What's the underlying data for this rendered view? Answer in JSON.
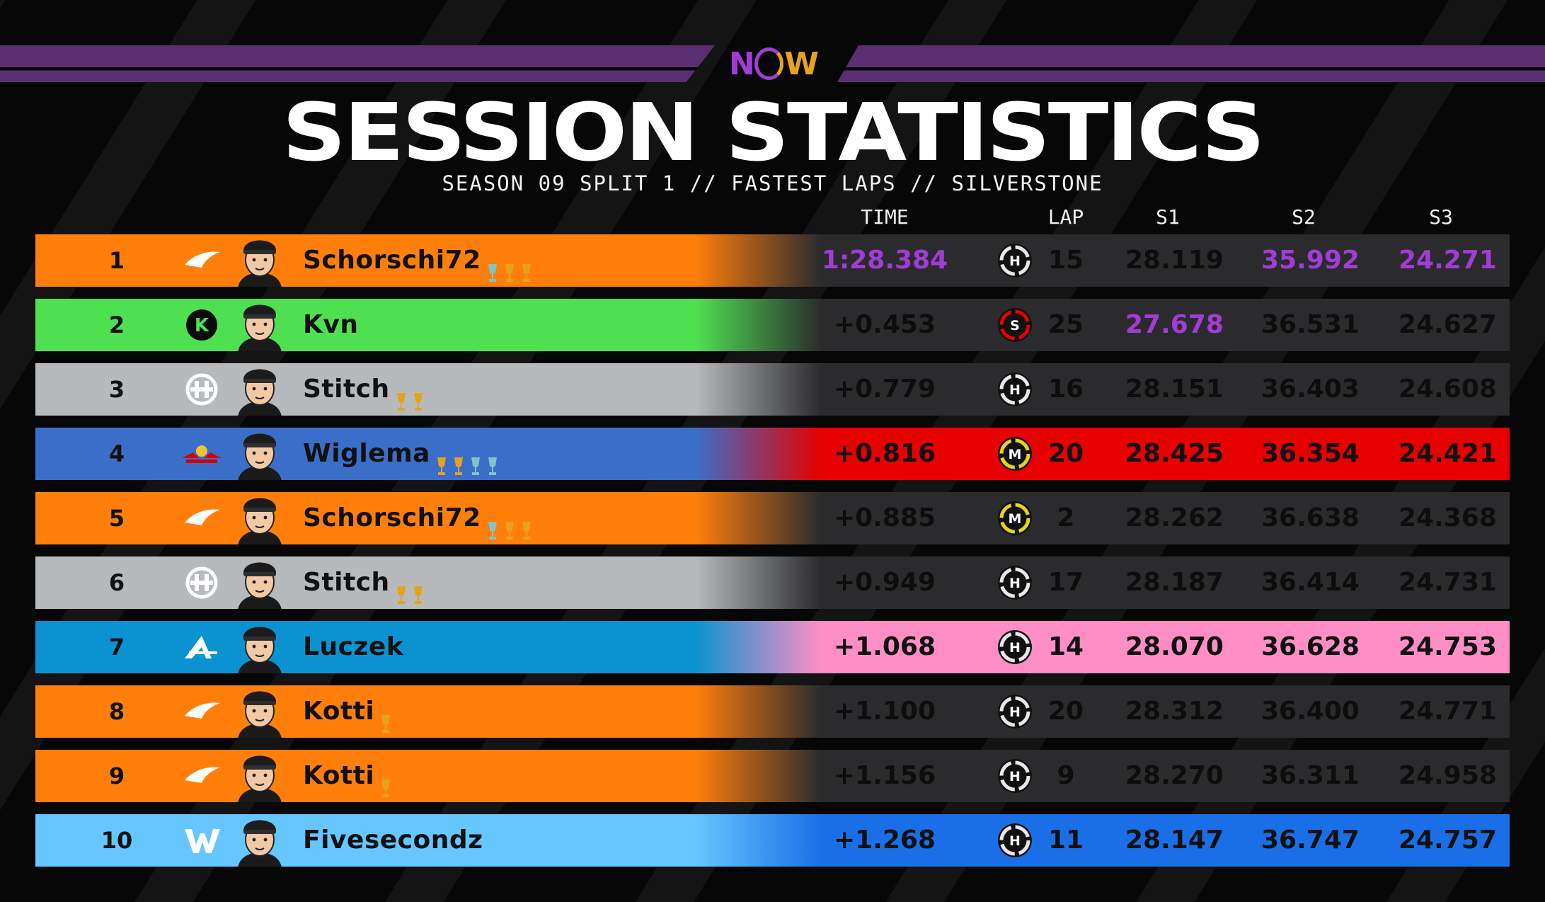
{
  "header": {
    "logo_text": "NOW",
    "title": "SESSION STATISTICS",
    "subtitle": "SEASON 09 SPLIT 1 // FASTEST LAPS // SILVERSTONE"
  },
  "columns": {
    "time": "TIME",
    "lap": "LAP",
    "s1": "S1",
    "s2": "S2",
    "s3": "S3"
  },
  "colors": {
    "mclaren": "#ff7f0a",
    "sauber": "#4fe052",
    "haas": "#b7babd",
    "redbull": "#3b6ec9",
    "alpine": "#0b93d1",
    "williams": "#66c6ff",
    "dark_row": "#2b2b2d",
    "red_row": "#e60000",
    "pink_row": "#ff8ec7",
    "blue_row": "#1b6fe6",
    "purple_time": "#a23cd6",
    "tyre_hard": "#e8e8e8",
    "tyre_medium": "#e8d21a",
    "tyre_soft": "#e60000"
  },
  "rows": [
    {
      "pos": "1",
      "team": "mclaren",
      "team_icon": "mclaren-swoosh-icon",
      "driver": "Schorschi72",
      "trophies": [
        "#7fc6c9",
        "#e6a21e",
        "#e6a21e"
      ],
      "time": "1:28.384",
      "tyre": "H",
      "lap": "15",
      "s1": "28.119",
      "s2": "35.992",
      "s3": "24.271",
      "right_bg": "dark_row",
      "purple": [
        "time",
        "s2",
        "s3"
      ]
    },
    {
      "pos": "2",
      "team": "sauber",
      "team_icon": "sauber-k-icon",
      "driver": "Kvn",
      "trophies": [],
      "time": "+0.453",
      "tyre": "S",
      "lap": "25",
      "s1": "27.678",
      "s2": "36.531",
      "s3": "24.627",
      "right_bg": "dark_row",
      "purple": [
        "s1"
      ]
    },
    {
      "pos": "3",
      "team": "haas",
      "team_icon": "haas-logo-icon",
      "driver": "Stitch",
      "trophies": [
        "#e6a21e",
        "#e6a21e"
      ],
      "time": "+0.779",
      "tyre": "H",
      "lap": "16",
      "s1": "28.151",
      "s2": "36.403",
      "s3": "24.608",
      "right_bg": "dark_row",
      "purple": []
    },
    {
      "pos": "4",
      "team": "redbull",
      "team_icon": "redbull-bulls-icon",
      "driver": "Wiglema",
      "trophies": [
        "#e6a21e",
        "#e6a21e",
        "#7fc6c9",
        "#7fc6c9"
      ],
      "time": "+0.816",
      "tyre": "M",
      "lap": "20",
      "s1": "28.425",
      "s2": "36.354",
      "s3": "24.421",
      "right_bg": "red_row",
      "purple": []
    },
    {
      "pos": "5",
      "team": "mclaren",
      "team_icon": "mclaren-swoosh-icon",
      "driver": "Schorschi72",
      "trophies": [
        "#7fc6c9",
        "#e6a21e",
        "#e6a21e"
      ],
      "time": "+0.885",
      "tyre": "M",
      "lap": "2",
      "s1": "28.262",
      "s2": "36.638",
      "s3": "24.368",
      "right_bg": "dark_row",
      "purple": []
    },
    {
      "pos": "6",
      "team": "haas",
      "team_icon": "haas-logo-icon",
      "driver": "Stitch",
      "trophies": [
        "#e6a21e",
        "#e6a21e"
      ],
      "time": "+0.949",
      "tyre": "H",
      "lap": "17",
      "s1": "28.187",
      "s2": "36.414",
      "s3": "24.731",
      "right_bg": "dark_row",
      "purple": []
    },
    {
      "pos": "7",
      "team": "alpine",
      "team_icon": "alpine-a-icon",
      "driver": "Luczek",
      "trophies": [],
      "time": "+1.068",
      "tyre": "H",
      "lap": "14",
      "s1": "28.070",
      "s2": "36.628",
      "s3": "24.753",
      "right_bg": "pink_row",
      "purple": []
    },
    {
      "pos": "8",
      "team": "mclaren",
      "team_icon": "mclaren-swoosh-icon",
      "driver": "Kotti",
      "trophies": [
        "#e6a21e"
      ],
      "time": "+1.100",
      "tyre": "H",
      "lap": "20",
      "s1": "28.312",
      "s2": "36.400",
      "s3": "24.771",
      "right_bg": "dark_row",
      "purple": []
    },
    {
      "pos": "9",
      "team": "mclaren",
      "team_icon": "mclaren-swoosh-icon",
      "driver": "Kotti",
      "trophies": [
        "#e6a21e"
      ],
      "time": "+1.156",
      "tyre": "H",
      "lap": "9",
      "s1": "28.270",
      "s2": "36.311",
      "s3": "24.958",
      "right_bg": "dark_row",
      "purple": []
    },
    {
      "pos": "10",
      "team": "williams",
      "team_icon": "williams-w-icon",
      "driver": "Fivesecondz",
      "trophies": [],
      "time": "+1.268",
      "tyre": "H",
      "lap": "11",
      "s1": "28.147",
      "s2": "36.747",
      "s3": "24.757",
      "right_bg": "blue_row",
      "purple": []
    }
  ]
}
